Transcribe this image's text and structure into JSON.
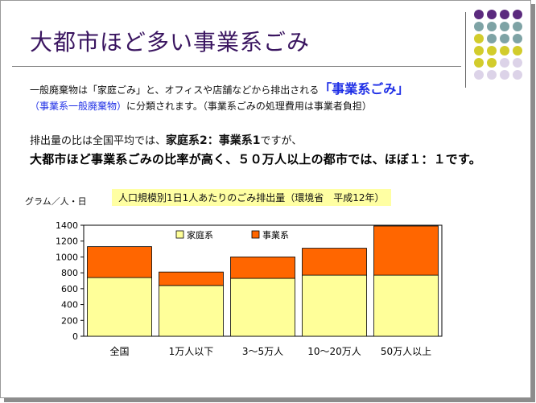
{
  "title": "大都市ほど多い事業系ごみ",
  "intro": {
    "line1_pre": "一般廃棄物は「家庭ごみ」と、オフィスや店舗などから排出される",
    "line1_highlight": "「事業系ごみ」",
    "line2_blue": "（事業系一般廃棄物）",
    "line2_rest": "に分類されます。（事業系ごみの処理費用は事業者負担）"
  },
  "ratio": {
    "line1_pre": "排出量の比は全国平均では、",
    "line1_bold": "家庭系2：事業系1",
    "line1_post": "ですが、",
    "line2": "大都市ほど事業系ごみの比率が高く、５０万人以上の都市では、ほぼ１：１です。"
  },
  "decor_colors": {
    "purple": "#5b2a7e",
    "teal": "#7ea3a5",
    "yellow": "#d2cc2c",
    "lavender": "#dcd3e8"
  },
  "chart_data": {
    "type": "bar",
    "stacked": true,
    "title": "人口規模別1日1人あたりのごみ排出量（環境省　平成12年）",
    "ylabel": "グラム／人・日",
    "categories": [
      "全国",
      "1万人以下",
      "3～5万人",
      "10～20万人",
      "50万人以上"
    ],
    "series": [
      {
        "name": "家庭系",
        "color": "#ffff99",
        "values": [
          740,
          640,
          730,
          770,
          770
        ]
      },
      {
        "name": "事業系",
        "color": "#ff6600",
        "values": [
          390,
          170,
          270,
          340,
          620
        ]
      }
    ],
    "ylim": [
      0,
      1400
    ],
    "yticks": [
      0,
      200,
      400,
      600,
      800,
      1000,
      1200,
      1400
    ],
    "legend_position": "top",
    "grid": false
  }
}
